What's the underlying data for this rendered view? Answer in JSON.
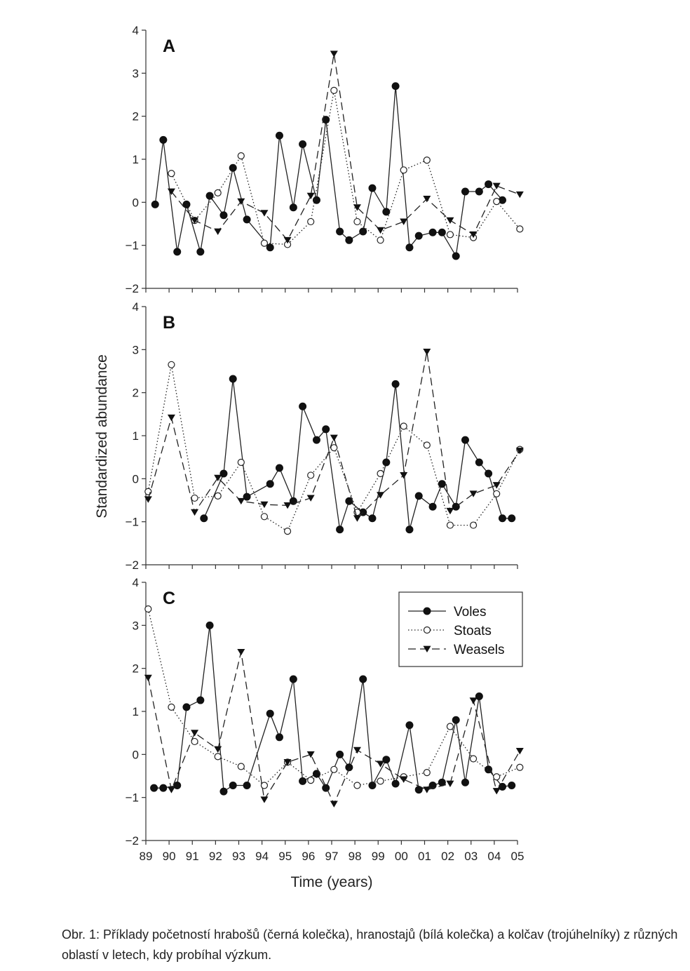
{
  "caption": "Obr. 1: Příklady početností hrabošů (černá kolečka), hranostajů (bílá kolečka) a kolčav (trojúhelníky) z různých oblastí v letech, kdy probíhal výzkum.",
  "chart_data": {
    "type": "line",
    "xlabel": "Time (years)",
    "ylabel": "Standardized abundance",
    "ylim": [
      -2,
      4
    ],
    "yticks": [
      "4",
      "3",
      "2",
      "1",
      "0",
      "−1",
      "−2"
    ],
    "yticks_values": [
      4,
      3,
      2,
      1,
      0,
      -1,
      -2
    ],
    "x_ticks": [
      "89",
      "90",
      "91",
      "92",
      "93",
      "94",
      "95",
      "96",
      "97",
      "98",
      "99",
      "00",
      "01",
      "02",
      "03",
      "04",
      "05"
    ],
    "xlim": [
      1989,
      2005
    ],
    "legend": [
      {
        "name": "Voles",
        "style": "solid",
        "marker": "filled-circle"
      },
      {
        "name": "Stoats",
        "style": "dotted",
        "marker": "open-circle"
      },
      {
        "name": "Weasels",
        "style": "dashed",
        "marker": "filled-triangle-down"
      }
    ],
    "legend_position": "upper-right of panel C",
    "panels": [
      {
        "label": "A",
        "series": [
          {
            "name": "Voles",
            "x": [
              1989.4,
              1989.75,
              1990.35,
              1990.75,
              1991.35,
              1991.75,
              1992.35,
              1992.75,
              1993.35,
              1994.35,
              1994.75,
              1995.35,
              1995.75,
              1996.35,
              1996.75,
              1997.35,
              1997.75,
              1998.35,
              1998.75,
              1999.35,
              1999.75,
              2000.35,
              2000.75,
              2001.35,
              2001.75,
              2002.35,
              2002.75,
              2003.35,
              2003.75,
              2004.35
            ],
            "values": [
              -0.05,
              1.45,
              -1.15,
              -0.05,
              -1.15,
              0.15,
              -0.3,
              0.8,
              -0.4,
              -1.05,
              1.55,
              -0.12,
              1.35,
              0.05,
              1.92,
              -0.68,
              -0.88,
              -0.68,
              0.33,
              -0.22,
              2.7,
              -1.05,
              -0.78,
              -0.7,
              -0.7,
              -1.25,
              0.25,
              0.25,
              0.42,
              0.05
            ]
          },
          {
            "name": "Stoats",
            "x": [
              1990.1,
              1991.1,
              1992.1,
              1993.1,
              1994.1,
              1995.1,
              1996.1,
              1997.1,
              1998.1,
              1999.1,
              2000.1,
              2001.1,
              2002.1,
              2003.1,
              2004.1,
              2005.1
            ],
            "values": [
              0.67,
              -0.42,
              0.22,
              1.08,
              -0.95,
              -0.98,
              -0.45,
              2.6,
              -0.45,
              -0.88,
              0.75,
              0.98,
              -0.75,
              -0.82,
              0.02,
              -0.62
            ]
          },
          {
            "name": "Weasels",
            "x": [
              1990.1,
              1991.1,
              1992.1,
              1993.1,
              1994.1,
              1995.1,
              1996.1,
              1997.1,
              1998.1,
              1999.1,
              2000.1,
              2001.1,
              2002.1,
              2003.1,
              2004.1,
              2005.1
            ],
            "values": [
              0.25,
              -0.42,
              -0.68,
              0.02,
              -0.25,
              -0.88,
              0.15,
              3.45,
              -0.12,
              -0.65,
              -0.45,
              0.08,
              -0.42,
              -0.75,
              0.38,
              0.18
            ]
          }
        ]
      },
      {
        "label": "B",
        "series": [
          {
            "name": "Voles",
            "x": [
              1991.5,
              1992.35,
              1992.75,
              1993.35,
              1994.35,
              1994.75,
              1995.35,
              1995.75,
              1996.35,
              1996.75,
              1997.35,
              1997.75,
              1998.35,
              1998.75,
              1999.35,
              1999.75,
              2000.35,
              2000.75,
              2001.35,
              2001.75,
              2002.35,
              2002.75,
              2003.35,
              2003.75,
              2004.35,
              2004.75
            ],
            "values": [
              -0.92,
              0.12,
              2.32,
              -0.42,
              -0.12,
              0.25,
              -0.52,
              1.68,
              0.9,
              1.15,
              -1.18,
              -0.52,
              -0.78,
              -0.92,
              0.38,
              2.2,
              -1.18,
              -0.4,
              -0.65,
              -0.12,
              -0.65,
              0.9,
              0.38,
              0.12,
              -0.92,
              -0.92
            ]
          },
          {
            "name": "Stoats",
            "x": [
              1989.1,
              1990.1,
              1991.1,
              1992.1,
              1993.1,
              1994.1,
              1995.1,
              1996.1,
              1997.1,
              1998.1,
              1999.1,
              2000.1,
              2001.1,
              2002.1,
              2003.1,
              2004.1,
              2005.1
            ],
            "values": [
              -0.3,
              2.65,
              -0.45,
              -0.4,
              0.38,
              -0.88,
              -1.22,
              0.08,
              0.72,
              -0.78,
              0.12,
              1.22,
              0.78,
              -1.08,
              -1.08,
              -0.35,
              0.68
            ]
          },
          {
            "name": "Weasels",
            "x": [
              1989.1,
              1990.1,
              1991.1,
              1992.1,
              1993.1,
              1994.1,
              1995.1,
              1996.1,
              1997.1,
              1998.1,
              1999.1,
              2000.1,
              2001.1,
              2002.1,
              2003.1,
              2004.1,
              2005.1
            ],
            "values": [
              -0.48,
              1.42,
              -0.78,
              0.02,
              -0.52,
              -0.6,
              -0.62,
              -0.45,
              0.95,
              -0.92,
              -0.38,
              0.08,
              2.95,
              -0.75,
              -0.35,
              -0.15,
              0.65
            ]
          }
        ]
      },
      {
        "label": "C",
        "series": [
          {
            "name": "Voles",
            "x": [
              1989.35,
              1989.75,
              1990.35,
              1990.75,
              1991.35,
              1991.75,
              1992.35,
              1992.75,
              1993.35,
              1994.35,
              1994.75,
              1995.35,
              1995.75,
              1996.35,
              1996.75,
              1997.35,
              1997.75,
              1998.35,
              1998.75,
              1999.35,
              1999.75,
              2000.35,
              2000.75,
              2001.35,
              2001.75,
              2002.35,
              2002.75,
              2003.35,
              2003.75,
              2004.35,
              2004.75
            ],
            "values": [
              -0.78,
              -0.78,
              -0.72,
              1.1,
              1.26,
              3.0,
              -0.86,
              -0.72,
              -0.72,
              0.95,
              0.4,
              1.75,
              -0.62,
              -0.45,
              -0.78,
              0.0,
              -0.3,
              1.75,
              -0.72,
              -0.12,
              -0.68,
              0.68,
              -0.82,
              -0.72,
              -0.65,
              0.8,
              -0.65,
              1.35,
              -0.35,
              -0.75,
              -0.72
            ]
          },
          {
            "name": "Stoats",
            "x": [
              1989.1,
              1990.1,
              1991.1,
              1992.1,
              1993.1,
              1994.1,
              1995.1,
              1996.1,
              1997.1,
              1998.1,
              1999.1,
              2000.1,
              2001.1,
              2002.1,
              2003.1,
              2004.1,
              2005.1
            ],
            "values": [
              3.38,
              1.1,
              0.3,
              -0.05,
              -0.28,
              -0.72,
              -0.18,
              -0.6,
              -0.35,
              -0.72,
              -0.62,
              -0.52,
              -0.42,
              0.65,
              -0.1,
              -0.52,
              -0.3
            ]
          },
          {
            "name": "Weasels",
            "x": [
              1989.1,
              1990.1,
              1991.1,
              1992.1,
              1993.1,
              1994.1,
              1995.1,
              1996.1,
              1997.1,
              1998.1,
              1999.1,
              2000.1,
              2001.1,
              2002.1,
              2003.1,
              2004.1,
              2005.1
            ],
            "values": [
              1.78,
              -0.82,
              0.5,
              0.12,
              2.38,
              -1.05,
              -0.18,
              0.0,
              -1.15,
              0.1,
              -0.22,
              -0.58,
              -0.82,
              -0.68,
              1.25,
              -0.85,
              0.08
            ]
          }
        ]
      }
    ]
  }
}
